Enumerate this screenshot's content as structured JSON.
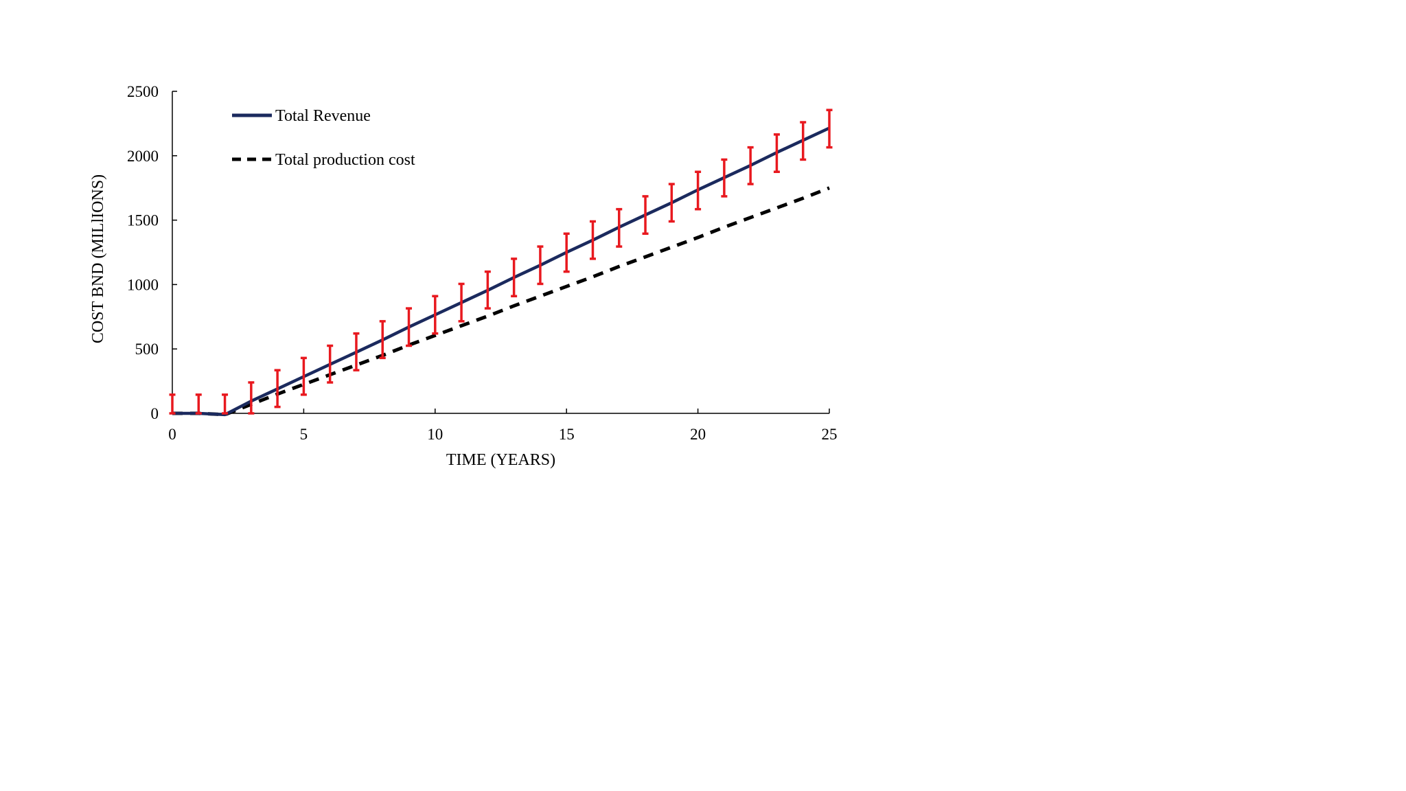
{
  "chart_data": {
    "type": "line",
    "title": "",
    "xlabel": "TIME (YEARS)",
    "ylabel": "COST BND (MILlIONS)",
    "xlim": [
      0,
      25
    ],
    "ylim": [
      0,
      2500
    ],
    "xticks": [
      0,
      5,
      10,
      15,
      20,
      25
    ],
    "yticks": [
      0,
      500,
      1000,
      1500,
      2000,
      2500
    ],
    "grid": false,
    "legend_position": "top-left",
    "x": [
      0,
      1,
      2,
      3,
      4,
      5,
      6,
      7,
      8,
      9,
      10,
      11,
      12,
      13,
      14,
      15,
      16,
      17,
      18,
      19,
      20,
      21,
      22,
      23,
      24,
      25
    ],
    "series": [
      {
        "name": "Total Revenue",
        "color": "#1b2a5e",
        "style": "solid",
        "values": [
          0,
          0,
          -10,
          95,
          190,
          285,
          380,
          475,
          570,
          670,
          765,
          860,
          955,
          1055,
          1150,
          1250,
          1345,
          1445,
          1540,
          1635,
          1735,
          1830,
          1925,
          2025,
          2120,
          2215
        ],
        "error_bars": {
          "color": "#e8191f",
          "upper": [
            145,
            145,
            145,
            240,
            335,
            430,
            525,
            620,
            715,
            815,
            910,
            1005,
            1100,
            1200,
            1295,
            1395,
            1490,
            1585,
            1685,
            1780,
            1875,
            1970,
            2065,
            2165,
            2260,
            2355
          ],
          "lower": [
            0,
            0,
            0,
            0,
            50,
            145,
            240,
            335,
            430,
            525,
            620,
            715,
            815,
            910,
            1005,
            1100,
            1200,
            1295,
            1395,
            1490,
            1585,
            1685,
            1780,
            1875,
            1970,
            2065
          ]
        }
      },
      {
        "name": "Total production cost",
        "color": "#000000",
        "style": "dashed",
        "values": [
          0,
          0,
          -10,
          70,
          150,
          225,
          300,
          375,
          450,
          530,
          605,
          680,
          755,
          835,
          910,
          985,
          1060,
          1140,
          1215,
          1290,
          1365,
          1445,
          1520,
          1595,
          1670,
          1750
        ]
      }
    ]
  }
}
